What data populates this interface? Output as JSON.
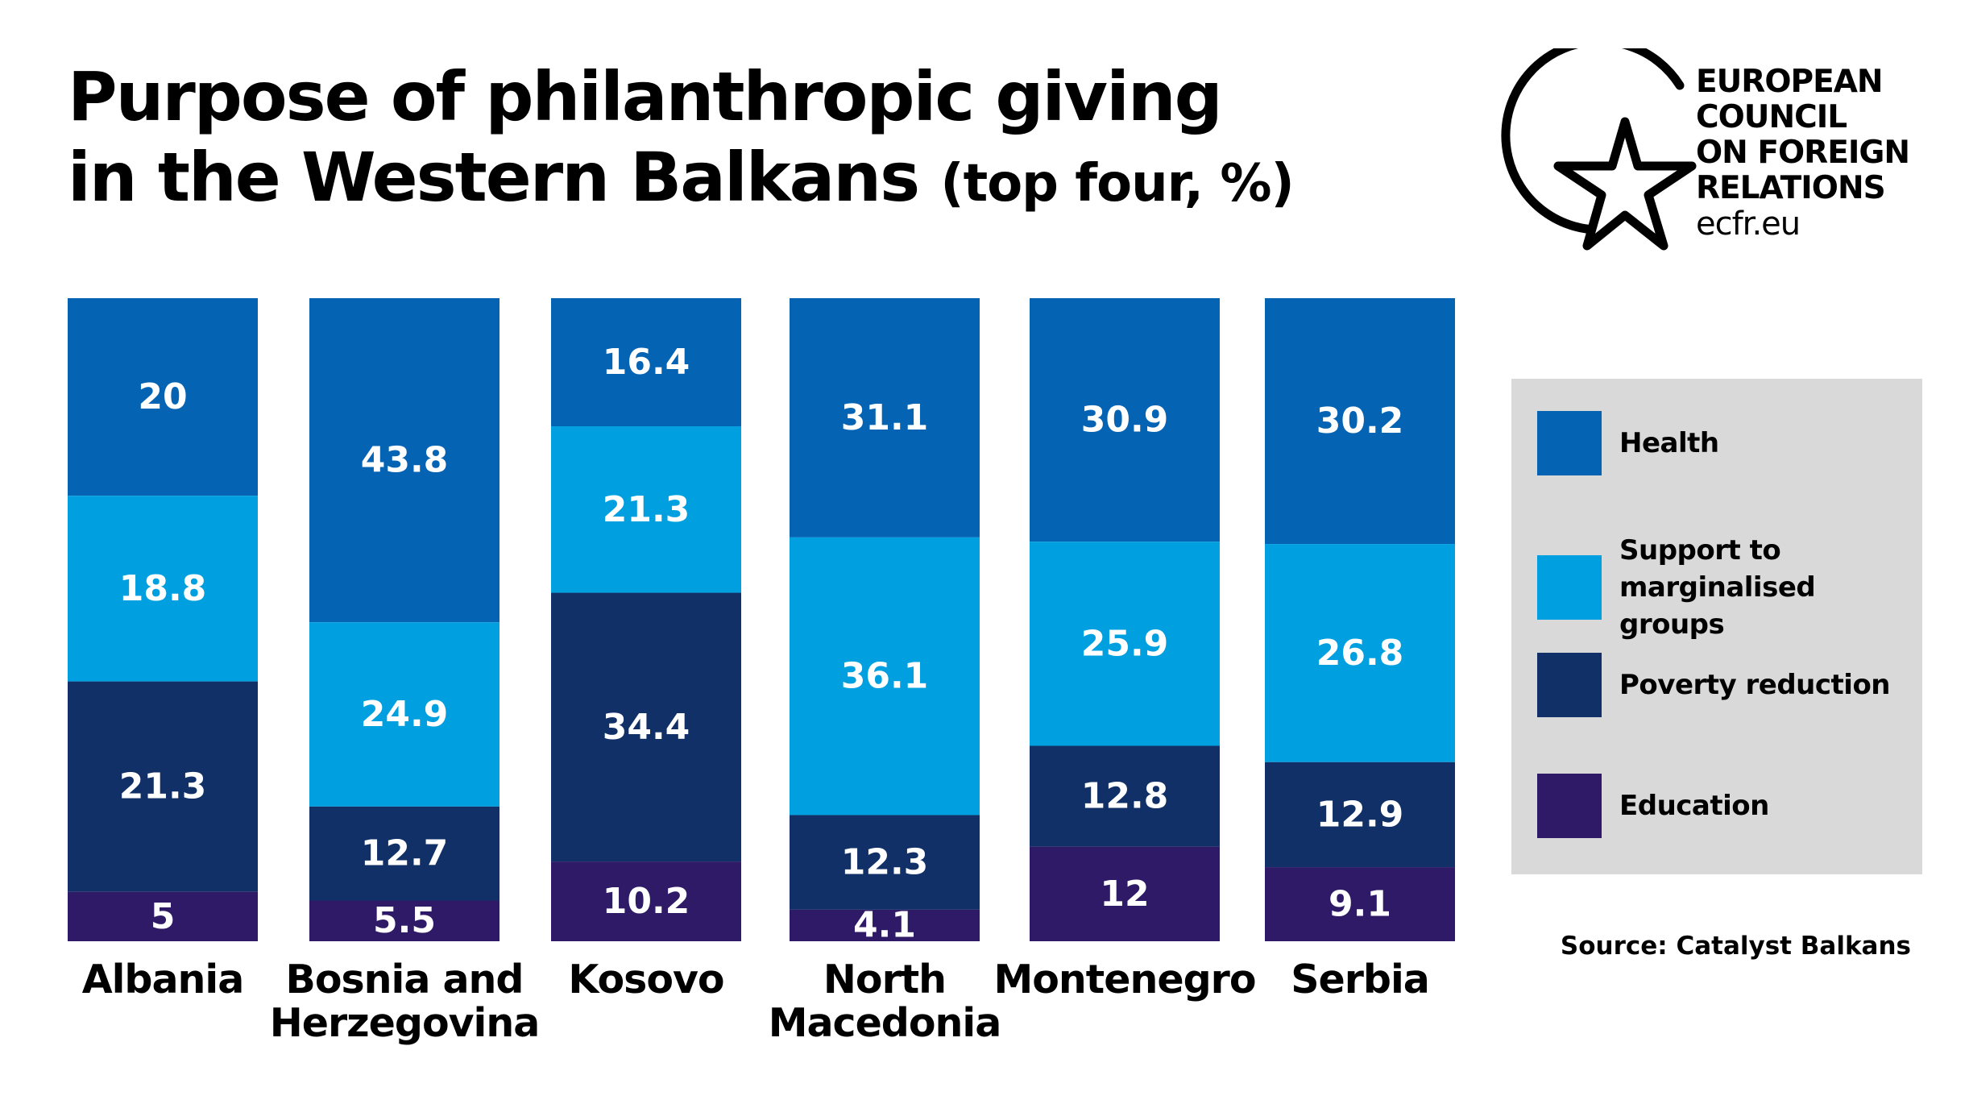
{
  "title": {
    "line1": "Purpose of philanthropic giving",
    "line2": "in the Western Balkans",
    "subtitle": "(top four, %)"
  },
  "logo": {
    "lines": [
      "EUROPEAN",
      "COUNCIL",
      "ON FOREIGN",
      "RELATIONS"
    ],
    "url": "ecfr.eu"
  },
  "source": "Source: Catalyst Balkans",
  "colors": {
    "health": "#0563b4",
    "support": "#00a0e0",
    "poverty": "#103067",
    "education": "#2e1a66",
    "legend_bg": "#d9d9d9"
  },
  "chart_data": {
    "type": "bar",
    "stacked": true,
    "categories": [
      [
        "Albania"
      ],
      [
        "Bosnia and",
        "Herzegovina"
      ],
      [
        "Kosovo"
      ],
      [
        "North",
        "Macedonia"
      ],
      [
        "Montenegro"
      ],
      [
        "Serbia"
      ]
    ],
    "series": [
      {
        "name": "Health",
        "color": "#0563b4",
        "values": [
          20,
          43.8,
          16.4,
          31.1,
          30.9,
          30.2
        ]
      },
      {
        "name": "Support to marginalised groups",
        "color": "#00a0e0",
        "values": [
          18.8,
          24.9,
          21.3,
          36.1,
          25.9,
          26.8
        ]
      },
      {
        "name": "Poverty reduction",
        "color": "#103067",
        "values": [
          21.3,
          12.7,
          34.4,
          12.3,
          12.8,
          12.9
        ]
      },
      {
        "name": "Education",
        "color": "#2e1a66",
        "values": [
          5,
          5.5,
          10.2,
          4.1,
          12,
          9.1
        ]
      }
    ],
    "value_labels": [
      [
        "20",
        "18.8",
        "21.3",
        "5"
      ],
      [
        "43.8",
        "24.9",
        "12.7",
        "5.5"
      ],
      [
        "16.4",
        "21.3",
        "34.4",
        "10.2"
      ],
      [
        "31.1",
        "36.1",
        "12.3",
        "4.1"
      ],
      [
        "30.9",
        "25.9",
        "12.8",
        "12"
      ],
      [
        "30.2",
        "26.8",
        "12.9",
        "9.1"
      ]
    ],
    "legend": {
      "placement": "right",
      "entries": [
        {
          "label": [
            "Health"
          ],
          "color": "#0563b4"
        },
        {
          "label": [
            "Support to",
            "marginalised groups"
          ],
          "color": "#00a0e0"
        },
        {
          "label": [
            "Poverty reduction"
          ],
          "color": "#103067"
        },
        {
          "label": [
            "Education"
          ],
          "color": "#2e1a66"
        }
      ]
    },
    "grid": false
  }
}
